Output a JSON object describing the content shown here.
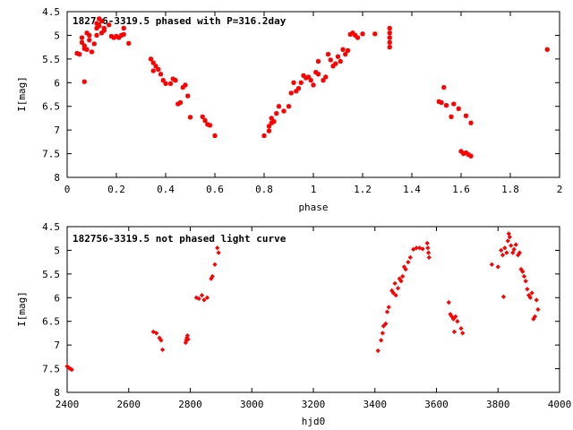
{
  "chart_data": [
    {
      "type": "scatter",
      "title": "182756-3319.5 phased with P=316.2day",
      "xlabel": "phase",
      "ylabel": "I[mag]",
      "xlim": [
        0,
        2
      ],
      "ylim": [
        4.5,
        8
      ],
      "y_inverted": true,
      "x_ticks": [
        "0",
        "0.2",
        "0.4",
        "0.6",
        "0.8",
        "1",
        "1.2",
        "1.4",
        "1.6",
        "1.8",
        "2"
      ],
      "y_ticks": [
        "4.5",
        "5",
        "5.5",
        "6",
        "6.5",
        "7",
        "7.5",
        "8"
      ],
      "grid": false,
      "marker_color": "#ff0000",
      "series": [
        {
          "points": [
            [
              0.04,
              5.38
            ],
            [
              0.05,
              5.4
            ],
            [
              0.06,
              5.05
            ],
            [
              0.06,
              5.15
            ],
            [
              0.07,
              5.22
            ],
            [
              0.07,
              5.28
            ],
            [
              0.07,
              5.98
            ],
            [
              0.08,
              4.95
            ],
            [
              0.08,
              5.3
            ],
            [
              0.09,
              5.1
            ],
            [
              0.09,
              5.0
            ],
            [
              0.1,
              5.35
            ],
            [
              0.11,
              5.18
            ],
            [
              0.12,
              5.0
            ],
            [
              0.12,
              4.85
            ],
            [
              0.12,
              4.75
            ],
            [
              0.13,
              4.65
            ],
            [
              0.13,
              4.8
            ],
            [
              0.14,
              4.95
            ],
            [
              0.14,
              4.7
            ],
            [
              0.15,
              4.85
            ],
            [
              0.15,
              4.9
            ],
            [
              0.17,
              4.78
            ],
            [
              0.18,
              5.02
            ],
            [
              0.19,
              5.05
            ],
            [
              0.2,
              5.02
            ],
            [
              0.21,
              5.05
            ],
            [
              0.22,
              5.0
            ],
            [
              0.23,
              4.98
            ],
            [
              0.23,
              4.85
            ],
            [
              0.25,
              5.17
            ],
            [
              0.34,
              5.5
            ],
            [
              0.35,
              5.58
            ],
            [
              0.35,
              5.75
            ],
            [
              0.36,
              5.65
            ],
            [
              0.37,
              5.72
            ],
            [
              0.38,
              5.82
            ],
            [
              0.39,
              5.95
            ],
            [
              0.4,
              6.02
            ],
            [
              0.42,
              6.02
            ],
            [
              0.43,
              5.92
            ],
            [
              0.44,
              5.95
            ],
            [
              0.45,
              6.45
            ],
            [
              0.46,
              6.42
            ],
            [
              0.47,
              6.1
            ],
            [
              0.48,
              6.05
            ],
            [
              0.49,
              6.28
            ],
            [
              0.5,
              6.73
            ],
            [
              0.55,
              6.72
            ],
            [
              0.56,
              6.8
            ],
            [
              0.57,
              6.88
            ],
            [
              0.58,
              6.9
            ],
            [
              0.6,
              7.12
            ],
            [
              0.8,
              7.12
            ],
            [
              0.82,
              7.02
            ],
            [
              0.82,
              6.92
            ],
            [
              0.83,
              6.85
            ],
            [
              0.83,
              6.75
            ],
            [
              0.84,
              6.82
            ],
            [
              0.85,
              6.65
            ],
            [
              0.86,
              6.5
            ],
            [
              0.88,
              6.6
            ],
            [
              0.9,
              6.5
            ],
            [
              0.91,
              6.22
            ],
            [
              0.92,
              6.0
            ],
            [
              0.93,
              6.18
            ],
            [
              0.94,
              6.12
            ],
            [
              0.95,
              6.0
            ],
            [
              0.96,
              5.85
            ],
            [
              0.97,
              5.9
            ],
            [
              0.98,
              5.88
            ],
            [
              0.99,
              5.95
            ],
            [
              1.0,
              6.05
            ],
            [
              1.01,
              5.78
            ],
            [
              1.02,
              5.82
            ],
            [
              1.02,
              5.55
            ],
            [
              1.04,
              5.95
            ],
            [
              1.05,
              5.88
            ],
            [
              1.06,
              5.4
            ],
            [
              1.07,
              5.52
            ],
            [
              1.08,
              5.65
            ],
            [
              1.09,
              5.6
            ],
            [
              1.1,
              5.45
            ],
            [
              1.11,
              5.55
            ],
            [
              1.12,
              5.3
            ],
            [
              1.13,
              5.4
            ],
            [
              1.14,
              5.32
            ],
            [
              1.15,
              4.98
            ],
            [
              1.16,
              4.95
            ],
            [
              1.17,
              5.0
            ],
            [
              1.18,
              5.05
            ],
            [
              1.2,
              4.97
            ],
            [
              1.25,
              4.97
            ],
            [
              1.31,
              4.85
            ],
            [
              1.31,
              4.95
            ],
            [
              1.31,
              5.05
            ],
            [
              1.31,
              5.15
            ],
            [
              1.31,
              5.25
            ],
            [
              1.51,
              6.4
            ],
            [
              1.52,
              6.42
            ],
            [
              1.53,
              6.1
            ],
            [
              1.54,
              6.48
            ],
            [
              1.56,
              6.72
            ],
            [
              1.57,
              6.45
            ],
            [
              1.59,
              6.55
            ],
            [
              1.6,
              7.45
            ],
            [
              1.61,
              7.5
            ],
            [
              1.62,
              7.48
            ],
            [
              1.62,
              6.7
            ],
            [
              1.63,
              7.52
            ],
            [
              1.64,
              7.55
            ],
            [
              1.64,
              6.85
            ],
            [
              1.95,
              5.3
            ]
          ]
        }
      ]
    },
    {
      "type": "scatter",
      "title": "182756-3319.5 not phased light curve",
      "xlabel": "hjd0",
      "ylabel": "I[mag]",
      "xlim": [
        2400,
        4000
      ],
      "ylim": [
        4.5,
        8
      ],
      "y_inverted": true,
      "x_ticks": [
        "2400",
        "2600",
        "2800",
        "3000",
        "3200",
        "3400",
        "3600",
        "3800",
        "4000"
      ],
      "y_ticks": [
        "4.5",
        "5",
        "5.5",
        "6",
        "6.5",
        "7",
        "7.5",
        "8"
      ],
      "grid": false,
      "marker_color": "#ff0000",
      "series": [
        {
          "points": [
            [
              2400,
              7.45
            ],
            [
              2405,
              7.48
            ],
            [
              2410,
              7.5
            ],
            [
              2415,
              7.52
            ],
            [
              2680,
              6.72
            ],
            [
              2690,
              6.75
            ],
            [
              2700,
              6.85
            ],
            [
              2705,
              6.9
            ],
            [
              2710,
              7.1
            ],
            [
              2785,
              6.95
            ],
            [
              2787,
              6.9
            ],
            [
              2789,
              6.85
            ],
            [
              2791,
              6.8
            ],
            [
              2793,
              6.88
            ],
            [
              2820,
              6.0
            ],
            [
              2828,
              6.02
            ],
            [
              2838,
              5.95
            ],
            [
              2845,
              6.05
            ],
            [
              2855,
              6.0
            ],
            [
              2868,
              5.6
            ],
            [
              2872,
              5.55
            ],
            [
              2880,
              5.3
            ],
            [
              2888,
              4.95
            ],
            [
              2892,
              5.05
            ],
            [
              3410,
              7.12
            ],
            [
              3420,
              6.9
            ],
            [
              3425,
              6.75
            ],
            [
              3428,
              6.6
            ],
            [
              3435,
              6.55
            ],
            [
              3440,
              6.3
            ],
            [
              3445,
              6.2
            ],
            [
              3455,
              5.85
            ],
            [
              3460,
              5.9
            ],
            [
              3465,
              5.7
            ],
            [
              3468,
              5.95
            ],
            [
              3475,
              5.8
            ],
            [
              3480,
              5.6
            ],
            [
              3485,
              5.65
            ],
            [
              3490,
              5.55
            ],
            [
              3495,
              5.35
            ],
            [
              3500,
              5.4
            ],
            [
              3508,
              5.25
            ],
            [
              3515,
              5.15
            ],
            [
              3525,
              4.98
            ],
            [
              3535,
              4.95
            ],
            [
              3545,
              4.95
            ],
            [
              3555,
              4.97
            ],
            [
              3570,
              4.85
            ],
            [
              3572,
              4.95
            ],
            [
              3574,
              5.05
            ],
            [
              3576,
              5.15
            ],
            [
              3640,
              6.1
            ],
            [
              3645,
              6.35
            ],
            [
              3650,
              6.4
            ],
            [
              3655,
              6.45
            ],
            [
              3658,
              6.72
            ],
            [
              3662,
              6.4
            ],
            [
              3668,
              6.5
            ],
            [
              3680,
              6.65
            ],
            [
              3685,
              6.75
            ],
            [
              3780,
              5.3
            ],
            [
              3800,
              5.35
            ],
            [
              3810,
              5.0
            ],
            [
              3815,
              5.1
            ],
            [
              3818,
              5.98
            ],
            [
              3822,
              4.95
            ],
            [
              3828,
              5.05
            ],
            [
              3832,
              4.8
            ],
            [
              3835,
              4.65
            ],
            [
              3838,
              4.72
            ],
            [
              3842,
              4.9
            ],
            [
              3848,
              5.05
            ],
            [
              3852,
              4.98
            ],
            [
              3858,
              4.88
            ],
            [
              3865,
              5.1
            ],
            [
              3870,
              5.05
            ],
            [
              3875,
              5.4
            ],
            [
              3880,
              5.45
            ],
            [
              3885,
              5.55
            ],
            [
              3890,
              5.65
            ],
            [
              3895,
              5.82
            ],
            [
              3900,
              5.95
            ],
            [
              3905,
              6.0
            ],
            [
              3910,
              5.9
            ],
            [
              3915,
              6.45
            ],
            [
              3920,
              6.4
            ],
            [
              3925,
              6.05
            ],
            [
              3930,
              6.25
            ]
          ]
        }
      ]
    }
  ]
}
